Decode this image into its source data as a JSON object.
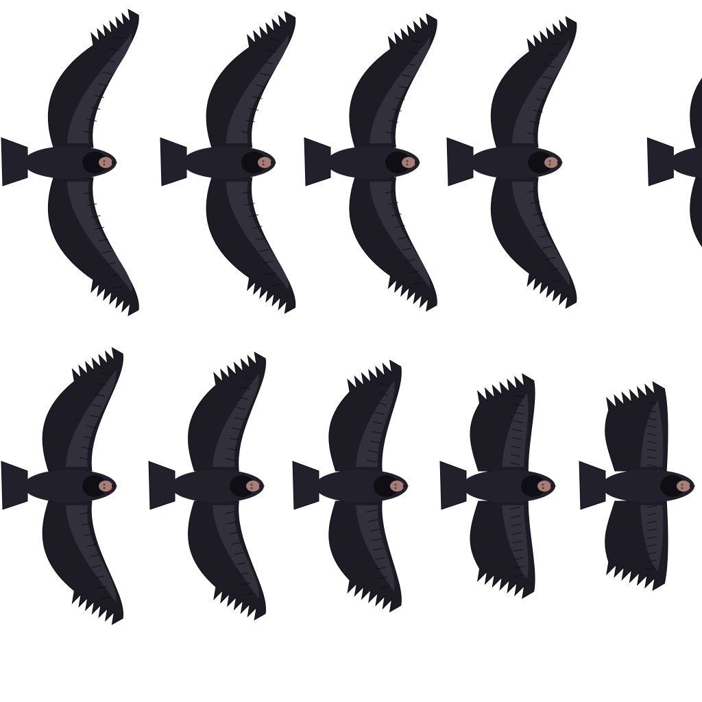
{
  "sprite_sheet": {
    "subject": "vulture-soaring-top-down",
    "background": "#ffffff",
    "colors": {
      "feather_dark": "#1d1c25",
      "feather_body": "#22212b",
      "feather_light": "#35343f",
      "feather_line": "#0f0e14",
      "head_skin": "#a87d78",
      "head_shadow": "#5a3f3f",
      "beak": "#1a1a1a"
    },
    "rows": [
      {
        "frames": [
          {
            "wing_fold": 0.0
          },
          {
            "wing_fold": 0.04
          },
          {
            "wing_fold": 0.08
          },
          {
            "wing_fold": 0.13
          },
          {
            "wing_fold": 0.19
          }
        ]
      },
      {
        "frames": [
          {
            "wing_fold": 0.26
          },
          {
            "wing_fold": 0.34
          },
          {
            "wing_fold": 0.48
          },
          {
            "wing_fold": 0.72
          },
          {
            "wing_fold": 0.86
          }
        ]
      }
    ]
  }
}
